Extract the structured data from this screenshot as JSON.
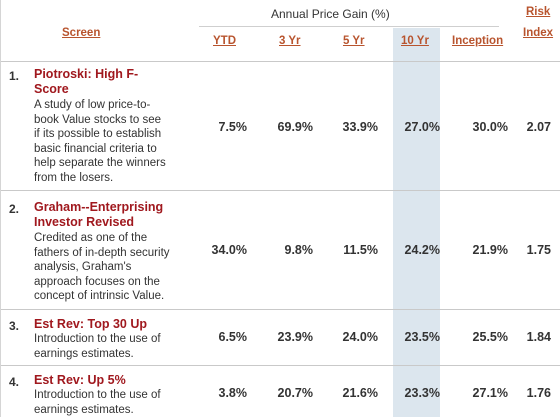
{
  "header": {
    "group_title": "Annual Price Gain (%)",
    "screen": "Screen",
    "ytd": "YTD",
    "yr3": "3 Yr",
    "yr5": "5 Yr",
    "yr10": "10 Yr",
    "inception": "Inception",
    "risk_line1": "Risk",
    "risk_line2": "Index"
  },
  "rows": [
    {
      "num": "1.",
      "title_line1": "Piotroski: High F-",
      "title_line2": "Score",
      "desc": [
        "A study of low price-to-",
        "book Value stocks to see",
        "if its possible to establish",
        "basic financial criteria to",
        "help separate the winners",
        "from the losers."
      ],
      "ytd": "7.5%",
      "yr3": "69.9%",
      "yr5": "33.9%",
      "yr10": "27.0%",
      "inception": "30.0%",
      "risk": "2.07"
    },
    {
      "num": "2.",
      "title_line1": "Graham--Enterprising",
      "title_line2": "Investor Revised",
      "desc": [
        "Credited as one of the",
        "fathers of in-depth security",
        "analysis, Graham's",
        "approach focuses on the",
        "concept of intrinsic Value."
      ],
      "ytd": "34.0%",
      "yr3": "9.8%",
      "yr5": "11.5%",
      "yr10": "24.2%",
      "inception": "21.9%",
      "risk": "1.75"
    },
    {
      "num": "3.",
      "title_line1": "Est Rev: Top 30 Up",
      "desc": [
        "Introduction to the use of",
        "earnings estimates."
      ],
      "ytd": "6.5%",
      "yr3": "23.9%",
      "yr5": "24.0%",
      "yr10": "23.5%",
      "inception": "25.5%",
      "risk": "1.84"
    },
    {
      "num": "4.",
      "title_line1": "Est Rev: Up 5%",
      "desc": [
        "Introduction to the use of",
        "earnings estimates."
      ],
      "ytd": "3.8%",
      "yr3": "20.7%",
      "yr5": "21.6%",
      "yr10": "23.3%",
      "inception": "27.1%",
      "risk": "1.76"
    }
  ]
}
